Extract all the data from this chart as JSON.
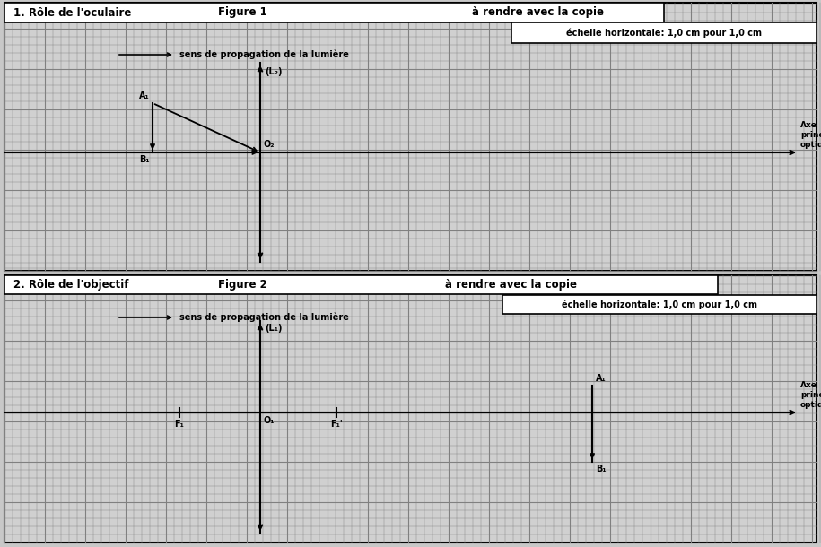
{
  "background_color": "#c8c8c8",
  "grid_bg_color": "#d0d0d0",
  "grid_color": "#808080",
  "line_color": "#000000",
  "white_color": "#ffffff",
  "fig_width": 9.15,
  "fig_height": 6.1,
  "title1": "1. Rôle de l'oculaire",
  "figure1": "Figure 1",
  "subtitle1": "à rendre avec la copie",
  "scale1": "échelle horizontale: 1,0 cm pour 1,0 cm",
  "propagation": "sens de propagation de la lumière",
  "lens2_label": "(L₂)",
  "O2_label": "O₂",
  "A1_label": "A₁",
  "B1_label": "B₁",
  "axe_label": "Axe\nprincipal\noptique",
  "title2": "2. Rôle de l'objectif",
  "figure2": "Figure 2",
  "subtitle2": "à rendre avec la copie",
  "scale2": "échelle horizontale: 1,0 cm pour 1,0 cm",
  "lens1_label": "(L₁)",
  "O1_label": "O₁",
  "F1_label": "F₁",
  "Fp1_label": "F₁'",
  "A1b_label": "A₁",
  "B1b_label": "B₁"
}
